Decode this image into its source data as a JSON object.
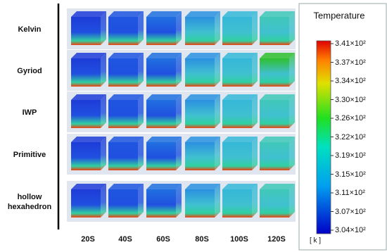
{
  "rows": [
    "Kelvin",
    "Gyriod",
    "IWP",
    "Primitive",
    "hollow hexahedron"
  ],
  "columns": [
    "20S",
    "40S",
    "60S",
    "80S",
    "100S",
    "120S"
  ],
  "colorbar": {
    "title": "Temperature",
    "ticks": [
      "3.41×10²",
      "3.37×10²",
      "3.34×10²",
      "3.30×10²",
      "3.26×10²",
      "3.22×10²",
      "3.19×10²",
      "3.15×10²",
      "3.11×10²",
      "3.07×10²",
      "3.04×10²"
    ],
    "unit": "[ k ]"
  }
}
